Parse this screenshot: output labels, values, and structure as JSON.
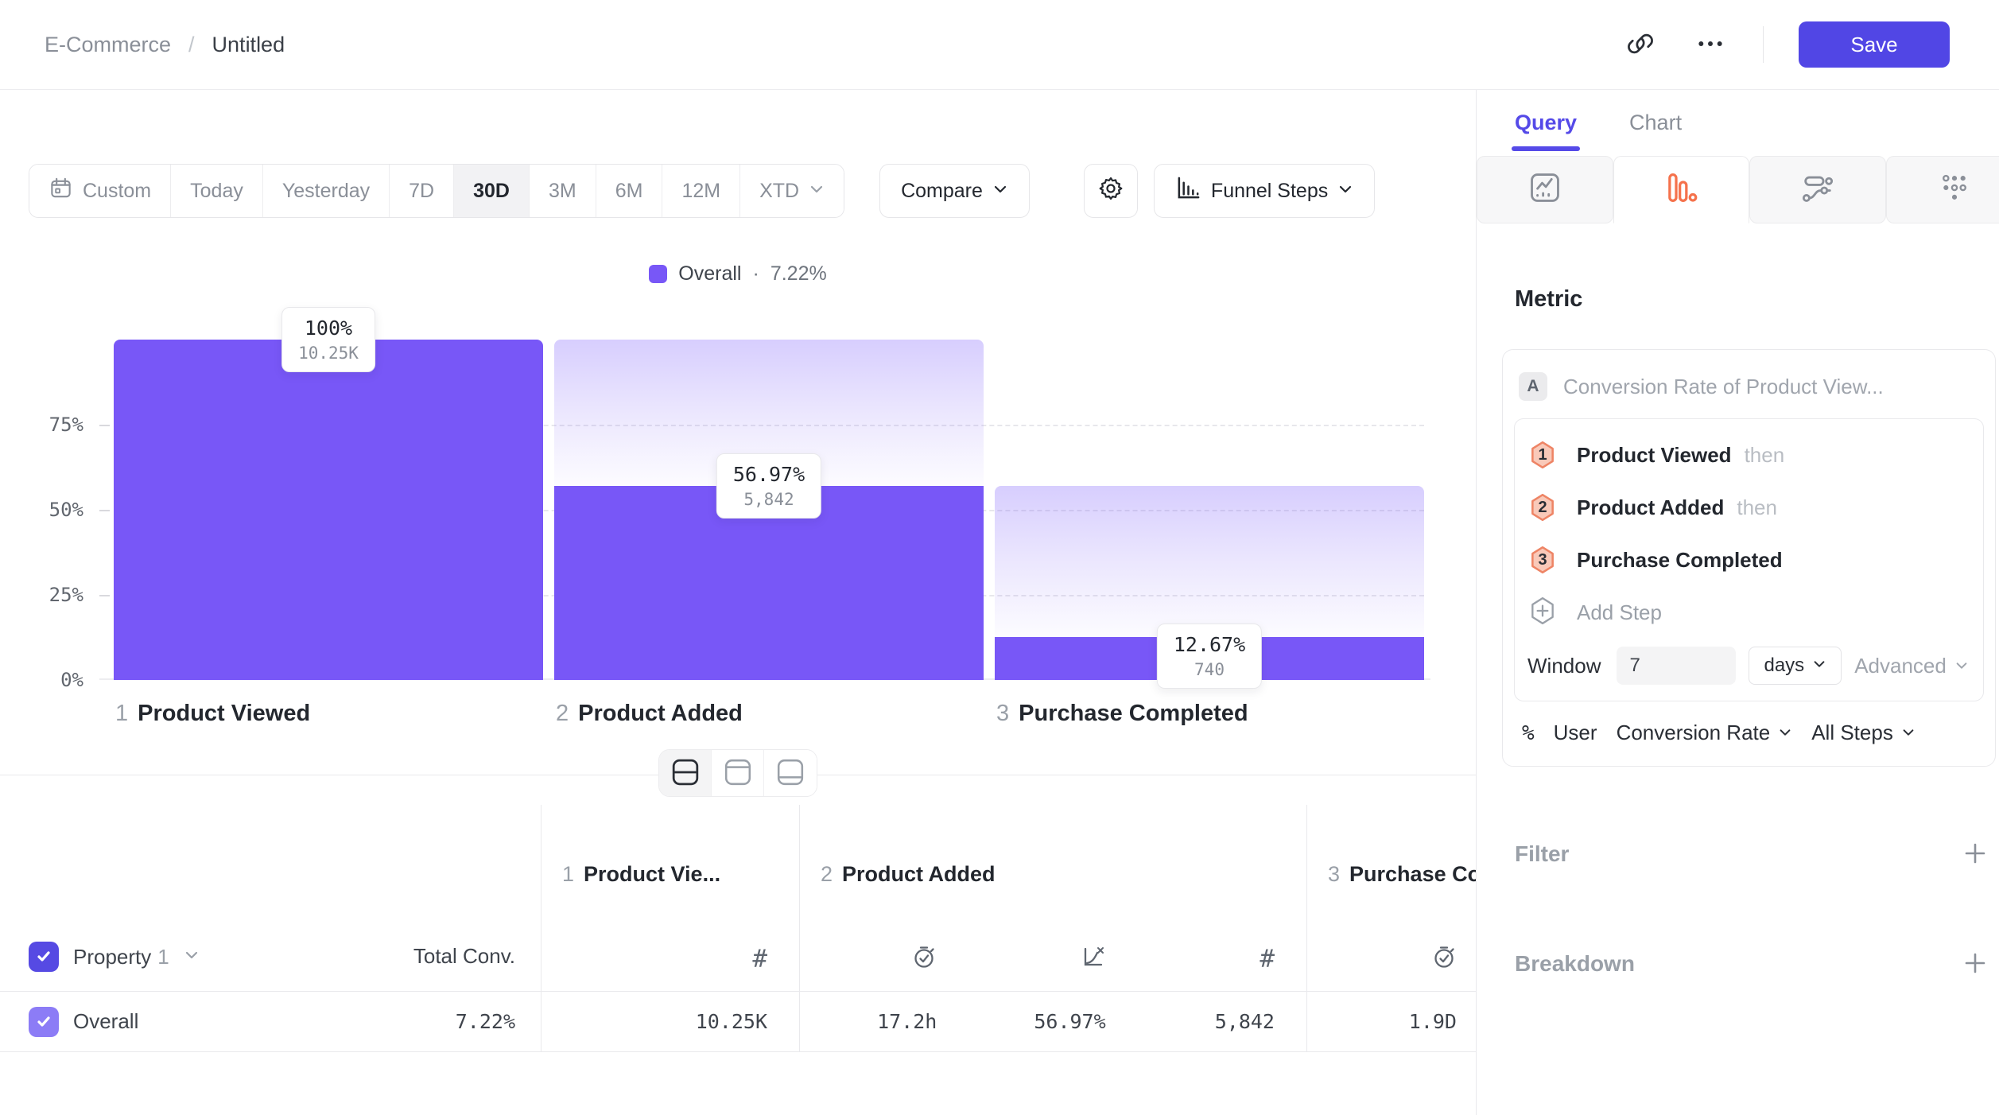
{
  "colors": {
    "accent_purple": "#7857F7",
    "save_indigo": "#5146E5",
    "query_accent": "#554AE8",
    "funnel_tab_orange": "#F5724C",
    "step_badge_border": "#EE8465",
    "step_badge_fill": "#F9C9B9"
  },
  "header": {
    "breadcrumb": {
      "parent": "E-Commerce",
      "separator": "/",
      "current": "Untitled"
    },
    "save_label": "Save"
  },
  "toolbar": {
    "date_ranges": [
      "Custom",
      "Today",
      "Yesterday",
      "7D",
      "30D",
      "3M",
      "6M",
      "12M",
      "XTD"
    ],
    "selected_range": "30D",
    "compare_label": "Compare",
    "chart_type_label": "Funnel Steps"
  },
  "chart_data": {
    "type": "funnel_bar",
    "legend": {
      "label": "Overall",
      "dot": "·",
      "value": "7.22%"
    },
    "overall_conversion_pct": 7.22,
    "ylim": [
      0,
      100
    ],
    "y_ticks": [
      "75%",
      "50%",
      "25%",
      "0%"
    ],
    "grid": "dashed-horizontal",
    "steps": [
      {
        "num": "1",
        "label": "Product Viewed",
        "pct": 100,
        "prev_pct": 100,
        "count": 10250,
        "pct_label": "100%",
        "count_label": "10.25K"
      },
      {
        "num": "2",
        "label": "Product Added",
        "pct": 56.97,
        "prev_pct": 100,
        "count": 5842,
        "pct_label": "56.97%",
        "count_label": "5,842"
      },
      {
        "num": "3",
        "label": "Purchase Completed",
        "pct": 12.67,
        "prev_pct": 56.97,
        "count": 740,
        "pct_label": "12.67%",
        "count_label": "740"
      }
    ]
  },
  "table": {
    "property_label": "Property",
    "property_index": "1",
    "total_conv_header": "Total Conv.",
    "step_columns": [
      {
        "num": "1",
        "label": "Product Vie..."
      },
      {
        "num": "2",
        "label": "Product Added"
      },
      {
        "num": "3",
        "label": "Purchase Completed"
      }
    ],
    "row": {
      "label": "Overall",
      "total_conv": "7.22%",
      "step1_count": "10.25K",
      "step2_time": "17.2h",
      "step2_conv": "56.97%",
      "step2_count": "5,842",
      "step3_time": "1.9D"
    }
  },
  "panel": {
    "tabs": {
      "query": "Query",
      "chart": "Chart"
    },
    "metric_heading": "Metric",
    "metric": {
      "badge": "A",
      "title": "Conversion Rate of Product View...",
      "steps": [
        {
          "num": "1",
          "label": "Product Viewed",
          "suffix": "then"
        },
        {
          "num": "2",
          "label": "Product Added",
          "suffix": "then"
        },
        {
          "num": "3",
          "label": "Purchase Completed",
          "suffix": ""
        }
      ],
      "add_step_label": "Add Step",
      "window_label": "Window",
      "window_value": "7",
      "window_unit": "days",
      "advanced_label": "Advanced",
      "footer": {
        "percent": "%",
        "actor": "User",
        "measure": "Conversion Rate",
        "scope": "All Steps"
      }
    },
    "filter_heading": "Filter",
    "breakdown_heading": "Breakdown"
  }
}
